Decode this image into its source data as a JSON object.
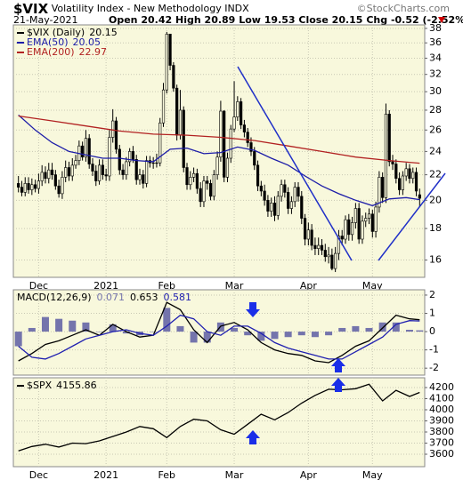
{
  "header": {
    "symbol": "$VIX",
    "name": "Volatility Index - New Methodology",
    "exchange": "INDX",
    "source": "©StockCharts.com",
    "date": "21-May-2021",
    "quote_labels": [
      "Open",
      "High",
      "Low",
      "Close",
      "Chg"
    ],
    "change": "-0.52 (-2.52%)"
  },
  "chart_data": [
    {
      "type": "candlestick",
      "ylog": true,
      "ylim": [
        15,
        38.5
      ],
      "yticks": [
        16,
        18,
        20,
        22,
        24,
        26,
        28,
        30,
        32,
        34,
        36,
        38
      ],
      "xlim": [
        -1.5,
        120.5
      ],
      "xticks": [
        {
          "value": 6,
          "label": "Dec"
        },
        {
          "value": 26,
          "label": "2021"
        },
        {
          "value": 44,
          "label": "Feb"
        },
        {
          "value": 64,
          "label": "Mar"
        },
        {
          "value": 86,
          "label": "Apr"
        },
        {
          "value": 105,
          "label": "May"
        }
      ],
      "grid": true,
      "background": "#f8f8dc",
      "x": [
        0,
        1,
        2,
        3,
        4,
        5,
        6,
        7,
        8,
        9,
        10,
        11,
        12,
        13,
        14,
        15,
        16,
        17,
        18,
        19,
        20,
        21,
        22,
        23,
        24,
        25,
        26,
        27,
        28,
        29,
        30,
        31,
        32,
        33,
        34,
        35,
        36,
        37,
        38,
        39,
        40,
        41,
        42,
        43,
        44,
        45,
        46,
        47,
        48,
        49,
        50,
        51,
        52,
        53,
        54,
        55,
        56,
        57,
        58,
        59,
        60,
        61,
        62,
        63,
        64,
        65,
        66,
        67,
        68,
        69,
        70,
        71,
        72,
        73,
        74,
        75,
        76,
        77,
        78,
        79,
        80,
        81,
        82,
        83,
        84,
        85,
        86,
        87,
        88,
        89,
        90,
        91,
        92,
        93,
        94,
        95,
        96,
        97,
        98,
        99,
        100,
        101,
        102,
        103,
        104,
        105,
        106,
        107,
        108,
        109,
        110,
        111,
        112,
        113,
        114,
        115,
        116,
        117,
        118,
        119
      ],
      "series": [
        {
          "name": "$VIX (Daily)",
          "color": "#000000",
          "open": [
            21.3,
            21.0,
            20.6,
            21.3,
            20.8,
            21.2,
            20.9,
            21.5,
            22.2,
            21.7,
            22.4,
            22.0,
            21.1,
            20.5,
            21.8,
            22.6,
            21.9,
            22.8,
            23.2,
            24.5,
            23.5,
            25.2,
            22.9,
            22.3,
            21.5,
            22.8,
            22.0,
            21.9,
            25.3,
            26.9,
            24.2,
            22.4,
            22.0,
            23.1,
            24.0,
            23.3,
            21.6,
            22.0,
            21.3,
            23.2,
            23.0,
            23.0,
            23.0,
            26.7,
            30.2,
            37.2,
            33.1,
            30.4,
            25.5,
            28.0,
            22.6,
            21.2,
            21.8,
            22.1,
            20.9,
            19.9,
            21.5,
            21.3,
            20.3,
            22.0,
            23.5,
            27.9,
            21.8,
            23.4,
            26.1,
            27.3,
            28.9,
            26.5,
            25.8,
            24.8,
            24.0,
            22.8,
            21.1,
            20.7,
            20.0,
            19.2,
            19.8,
            18.9,
            20.3,
            21.2,
            20.6,
            19.4,
            19.9,
            21.0,
            20.3,
            18.7,
            17.3,
            17.9,
            16.9,
            16.7,
            16.9,
            16.6,
            16.2,
            16.3,
            15.5,
            16.4,
            17.5,
            17.3,
            18.6,
            17.6,
            18.4,
            19.4,
            17.3,
            18.5,
            18.7,
            19.0,
            17.8,
            19.5,
            21.8,
            20.2,
            27.6,
            23.1,
            22.9,
            21.7,
            20.8,
            21.9,
            22.5,
            21.7,
            22.2,
            20.42
          ],
          "high": [
            21.9,
            21.5,
            21.8,
            21.8,
            21.7,
            21.6,
            22.1,
            22.8,
            22.7,
            23.0,
            23.0,
            22.4,
            21.6,
            22.3,
            23.2,
            23.1,
            23.4,
            23.7,
            25.0,
            24.9,
            26.0,
            25.6,
            23.4,
            22.8,
            23.3,
            23.3,
            22.5,
            26.0,
            28.1,
            27.3,
            24.6,
            22.9,
            23.5,
            24.3,
            24.5,
            23.7,
            22.5,
            22.4,
            23.6,
            23.6,
            23.5,
            23.8,
            27.2,
            31.0,
            37.5,
            37.0,
            33.5,
            30.8,
            30.2,
            28.4,
            23.0,
            22.3,
            22.6,
            22.5,
            21.4,
            21.9,
            21.9,
            21.6,
            22.4,
            24.0,
            29.0,
            28.0,
            23.9,
            26.5,
            31.2,
            29.5,
            29.3,
            27.0,
            26.2,
            25.3,
            24.4,
            23.2,
            21.5,
            21.2,
            20.4,
            20.2,
            20.3,
            20.7,
            21.6,
            21.6,
            21.0,
            20.3,
            21.4,
            21.4,
            20.7,
            19.0,
            18.4,
            18.3,
            17.4,
            17.4,
            17.3,
            17.0,
            16.8,
            16.7,
            16.8,
            17.9,
            17.9,
            18.9,
            19.0,
            18.8,
            19.8,
            19.8,
            18.9,
            19.1,
            19.4,
            19.3,
            19.9,
            22.3,
            22.2,
            28.7,
            28.0,
            23.7,
            23.3,
            22.2,
            22.3,
            23.0,
            22.9,
            22.6,
            22.6,
            20.89
          ],
          "low": [
            20.6,
            20.3,
            20.3,
            20.5,
            20.4,
            20.6,
            20.5,
            21.1,
            21.3,
            21.3,
            21.6,
            20.8,
            20.2,
            20.1,
            21.4,
            21.5,
            21.5,
            22.5,
            22.8,
            23.2,
            23.1,
            22.5,
            21.9,
            21.1,
            21.2,
            21.6,
            21.5,
            21.5,
            24.8,
            23.8,
            22.0,
            21.6,
            21.6,
            22.7,
            23.0,
            21.2,
            21.2,
            20.9,
            21.0,
            22.6,
            22.5,
            22.6,
            22.7,
            26.3,
            29.8,
            32.5,
            30.0,
            25.0,
            25.1,
            22.2,
            20.8,
            20.8,
            21.4,
            20.5,
            19.5,
            19.5,
            20.8,
            20.0,
            20.0,
            21.6,
            23.1,
            21.4,
            21.4,
            23.0,
            25.8,
            26.9,
            26.1,
            25.3,
            24.4,
            23.6,
            22.4,
            20.7,
            20.3,
            19.6,
            18.8,
            18.8,
            18.5,
            18.6,
            19.9,
            20.2,
            19.0,
            19.0,
            19.5,
            19.9,
            18.3,
            16.9,
            16.9,
            16.6,
            16.3,
            16.3,
            16.3,
            15.9,
            15.8,
            15.4,
            15.3,
            16.0,
            16.9,
            17.0,
            17.2,
            17.2,
            18.0,
            17.0,
            17.0,
            18.1,
            18.3,
            17.4,
            17.4,
            19.1,
            19.8,
            19.8,
            22.7,
            22.4,
            21.3,
            20.4,
            20.4,
            21.5,
            21.3,
            21.3,
            20.3,
            19.53
          ],
          "close": [
            21.0,
            20.6,
            21.3,
            20.8,
            21.2,
            20.9,
            21.5,
            22.2,
            21.7,
            22.4,
            22.0,
            21.1,
            20.5,
            21.8,
            22.6,
            21.9,
            22.8,
            23.2,
            24.5,
            23.5,
            25.2,
            22.9,
            22.3,
            21.5,
            22.8,
            22.0,
            21.9,
            25.3,
            26.9,
            24.2,
            22.4,
            22.0,
            23.1,
            24.0,
            23.3,
            21.6,
            22.0,
            21.3,
            23.2,
            23.0,
            23.0,
            23.0,
            26.7,
            30.2,
            37.2,
            33.1,
            30.4,
            25.5,
            28.0,
            22.6,
            21.2,
            21.8,
            22.1,
            20.9,
            19.9,
            21.5,
            21.3,
            20.3,
            22.0,
            23.5,
            27.9,
            21.8,
            23.4,
            26.1,
            27.3,
            28.9,
            26.5,
            25.8,
            24.8,
            24.0,
            22.8,
            21.1,
            20.7,
            20.0,
            19.2,
            19.8,
            18.9,
            20.3,
            21.2,
            20.6,
            19.4,
            19.9,
            21.0,
            20.3,
            18.7,
            17.3,
            17.9,
            16.9,
            16.7,
            16.9,
            16.6,
            16.2,
            16.3,
            15.5,
            16.4,
            17.5,
            17.3,
            18.6,
            17.6,
            18.4,
            19.4,
            17.3,
            18.5,
            18.7,
            19.0,
            17.8,
            19.5,
            21.8,
            20.2,
            27.6,
            23.1,
            22.9,
            21.7,
            20.8,
            21.9,
            22.5,
            21.7,
            22.2,
            20.7,
            20.15
          ]
        },
        {
          "name": "EMA(50)",
          "color": "#1c1ca8",
          "x": [
            0,
            5,
            10,
            15,
            20,
            25,
            30,
            35,
            40,
            45,
            50,
            55,
            60,
            65,
            70,
            75,
            80,
            85,
            90,
            95,
            100,
            105,
            110,
            115,
            119
          ],
          "values": [
            27.5,
            26.0,
            24.8,
            24.0,
            23.7,
            23.4,
            23.4,
            23.2,
            23.1,
            24.2,
            24.3,
            23.8,
            23.9,
            24.4,
            24.1,
            23.4,
            22.8,
            21.9,
            21.1,
            20.5,
            20.0,
            19.6,
            20.1,
            20.2,
            20.05
          ]
        },
        {
          "name": "EMA(200)",
          "color": "#b22222",
          "x": [
            0,
            10,
            20,
            30,
            40,
            50,
            60,
            70,
            80,
            90,
            100,
            110,
            119
          ],
          "values": [
            27.4,
            26.9,
            26.4,
            25.9,
            25.6,
            25.5,
            25.3,
            25.0,
            24.5,
            24.0,
            23.5,
            23.2,
            22.97
          ]
        }
      ]
    },
    {
      "type": "line",
      "label": "MACD(12,26,9)",
      "ylim": [
        -2.38,
        2.29
      ],
      "yticks": [
        -2,
        -1,
        0,
        1,
        2
      ],
      "xlim": [
        -1.5,
        120.5
      ],
      "grid": true,
      "background": "#f8f8dc",
      "series": [
        {
          "style": "histogram",
          "color": "#7474ac",
          "x": [
            0,
            4,
            8,
            12,
            16,
            20,
            24,
            28,
            32,
            36,
            40,
            44,
            48,
            52,
            56,
            60,
            64,
            68,
            72,
            76,
            80,
            84,
            88,
            92,
            96,
            100,
            104,
            108,
            112,
            116,
            119
          ],
          "values": [
            -0.8,
            0.2,
            0.8,
            0.7,
            0.6,
            0.5,
            0.0,
            0.4,
            -0.1,
            -0.2,
            0.0,
            1.3,
            0.3,
            -0.6,
            -0.6,
            0.5,
            0.2,
            -0.2,
            -0.5,
            -0.4,
            -0.3,
            -0.2,
            -0.3,
            -0.2,
            0.2,
            0.3,
            0.2,
            0.5,
            0.5,
            0.1,
            0.071
          ]
        },
        {
          "color": "#000000",
          "x": [
            0,
            4,
            8,
            12,
            16,
            20,
            24,
            28,
            32,
            36,
            40,
            44,
            48,
            52,
            56,
            60,
            64,
            68,
            72,
            76,
            80,
            84,
            88,
            92,
            96,
            100,
            104,
            108,
            112,
            116,
            119
          ],
          "values": [
            -1.6,
            -1.2,
            -0.7,
            -0.5,
            -0.2,
            0.1,
            -0.2,
            0.4,
            0.0,
            -0.3,
            -0.2,
            1.6,
            1.2,
            0.1,
            -0.6,
            0.3,
            0.5,
            0.1,
            -0.6,
            -1.0,
            -1.2,
            -1.3,
            -1.6,
            -1.7,
            -1.3,
            -0.8,
            -0.5,
            0.2,
            0.9,
            0.7,
            0.653
          ]
        },
        {
          "color": "#2020b0",
          "x": [
            0,
            4,
            8,
            12,
            16,
            20,
            24,
            28,
            32,
            36,
            40,
            44,
            48,
            52,
            56,
            60,
            64,
            68,
            72,
            76,
            80,
            84,
            88,
            92,
            96,
            100,
            104,
            108,
            112,
            116,
            119
          ],
          "values": [
            -0.8,
            -1.4,
            -1.5,
            -1.2,
            -0.8,
            -0.4,
            -0.2,
            0.0,
            0.1,
            -0.1,
            -0.2,
            0.3,
            0.9,
            0.7,
            0.0,
            -0.2,
            0.3,
            0.3,
            -0.1,
            -0.6,
            -0.9,
            -1.1,
            -1.3,
            -1.5,
            -1.5,
            -1.1,
            -0.7,
            -0.3,
            0.4,
            0.6,
            0.581
          ]
        }
      ]
    },
    {
      "type": "line",
      "ylim": [
        3488,
        4288
      ],
      "yticks": [
        3600,
        3700,
        3800,
        3900,
        4000,
        4100,
        4200
      ],
      "xlim": [
        -1.5,
        120.5
      ],
      "xticks": [
        {
          "value": 6,
          "label": "Dec"
        },
        {
          "value": 26,
          "label": "2021"
        },
        {
          "value": 44,
          "label": "Feb"
        },
        {
          "value": 64,
          "label": "Mar"
        },
        {
          "value": 86,
          "label": "Apr"
        },
        {
          "value": 105,
          "label": "May"
        }
      ],
      "grid": true,
      "background": "#f8f8dc",
      "series": [
        {
          "name": "$SPX",
          "color": "#000000",
          "x": [
            0,
            4,
            8,
            12,
            16,
            20,
            24,
            28,
            32,
            36,
            40,
            44,
            48,
            52,
            56,
            60,
            64,
            68,
            72,
            76,
            80,
            84,
            88,
            92,
            96,
            100,
            104,
            108,
            112,
            116,
            119
          ],
          "values": [
            3630,
            3670,
            3690,
            3665,
            3700,
            3695,
            3720,
            3760,
            3800,
            3850,
            3830,
            3750,
            3850,
            3915,
            3900,
            3820,
            3780,
            3870,
            3960,
            3910,
            3975,
            4060,
            4130,
            4185,
            4180,
            4190,
            4230,
            4080,
            4175,
            4120,
            4155.86
          ]
        }
      ]
    }
  ]
}
